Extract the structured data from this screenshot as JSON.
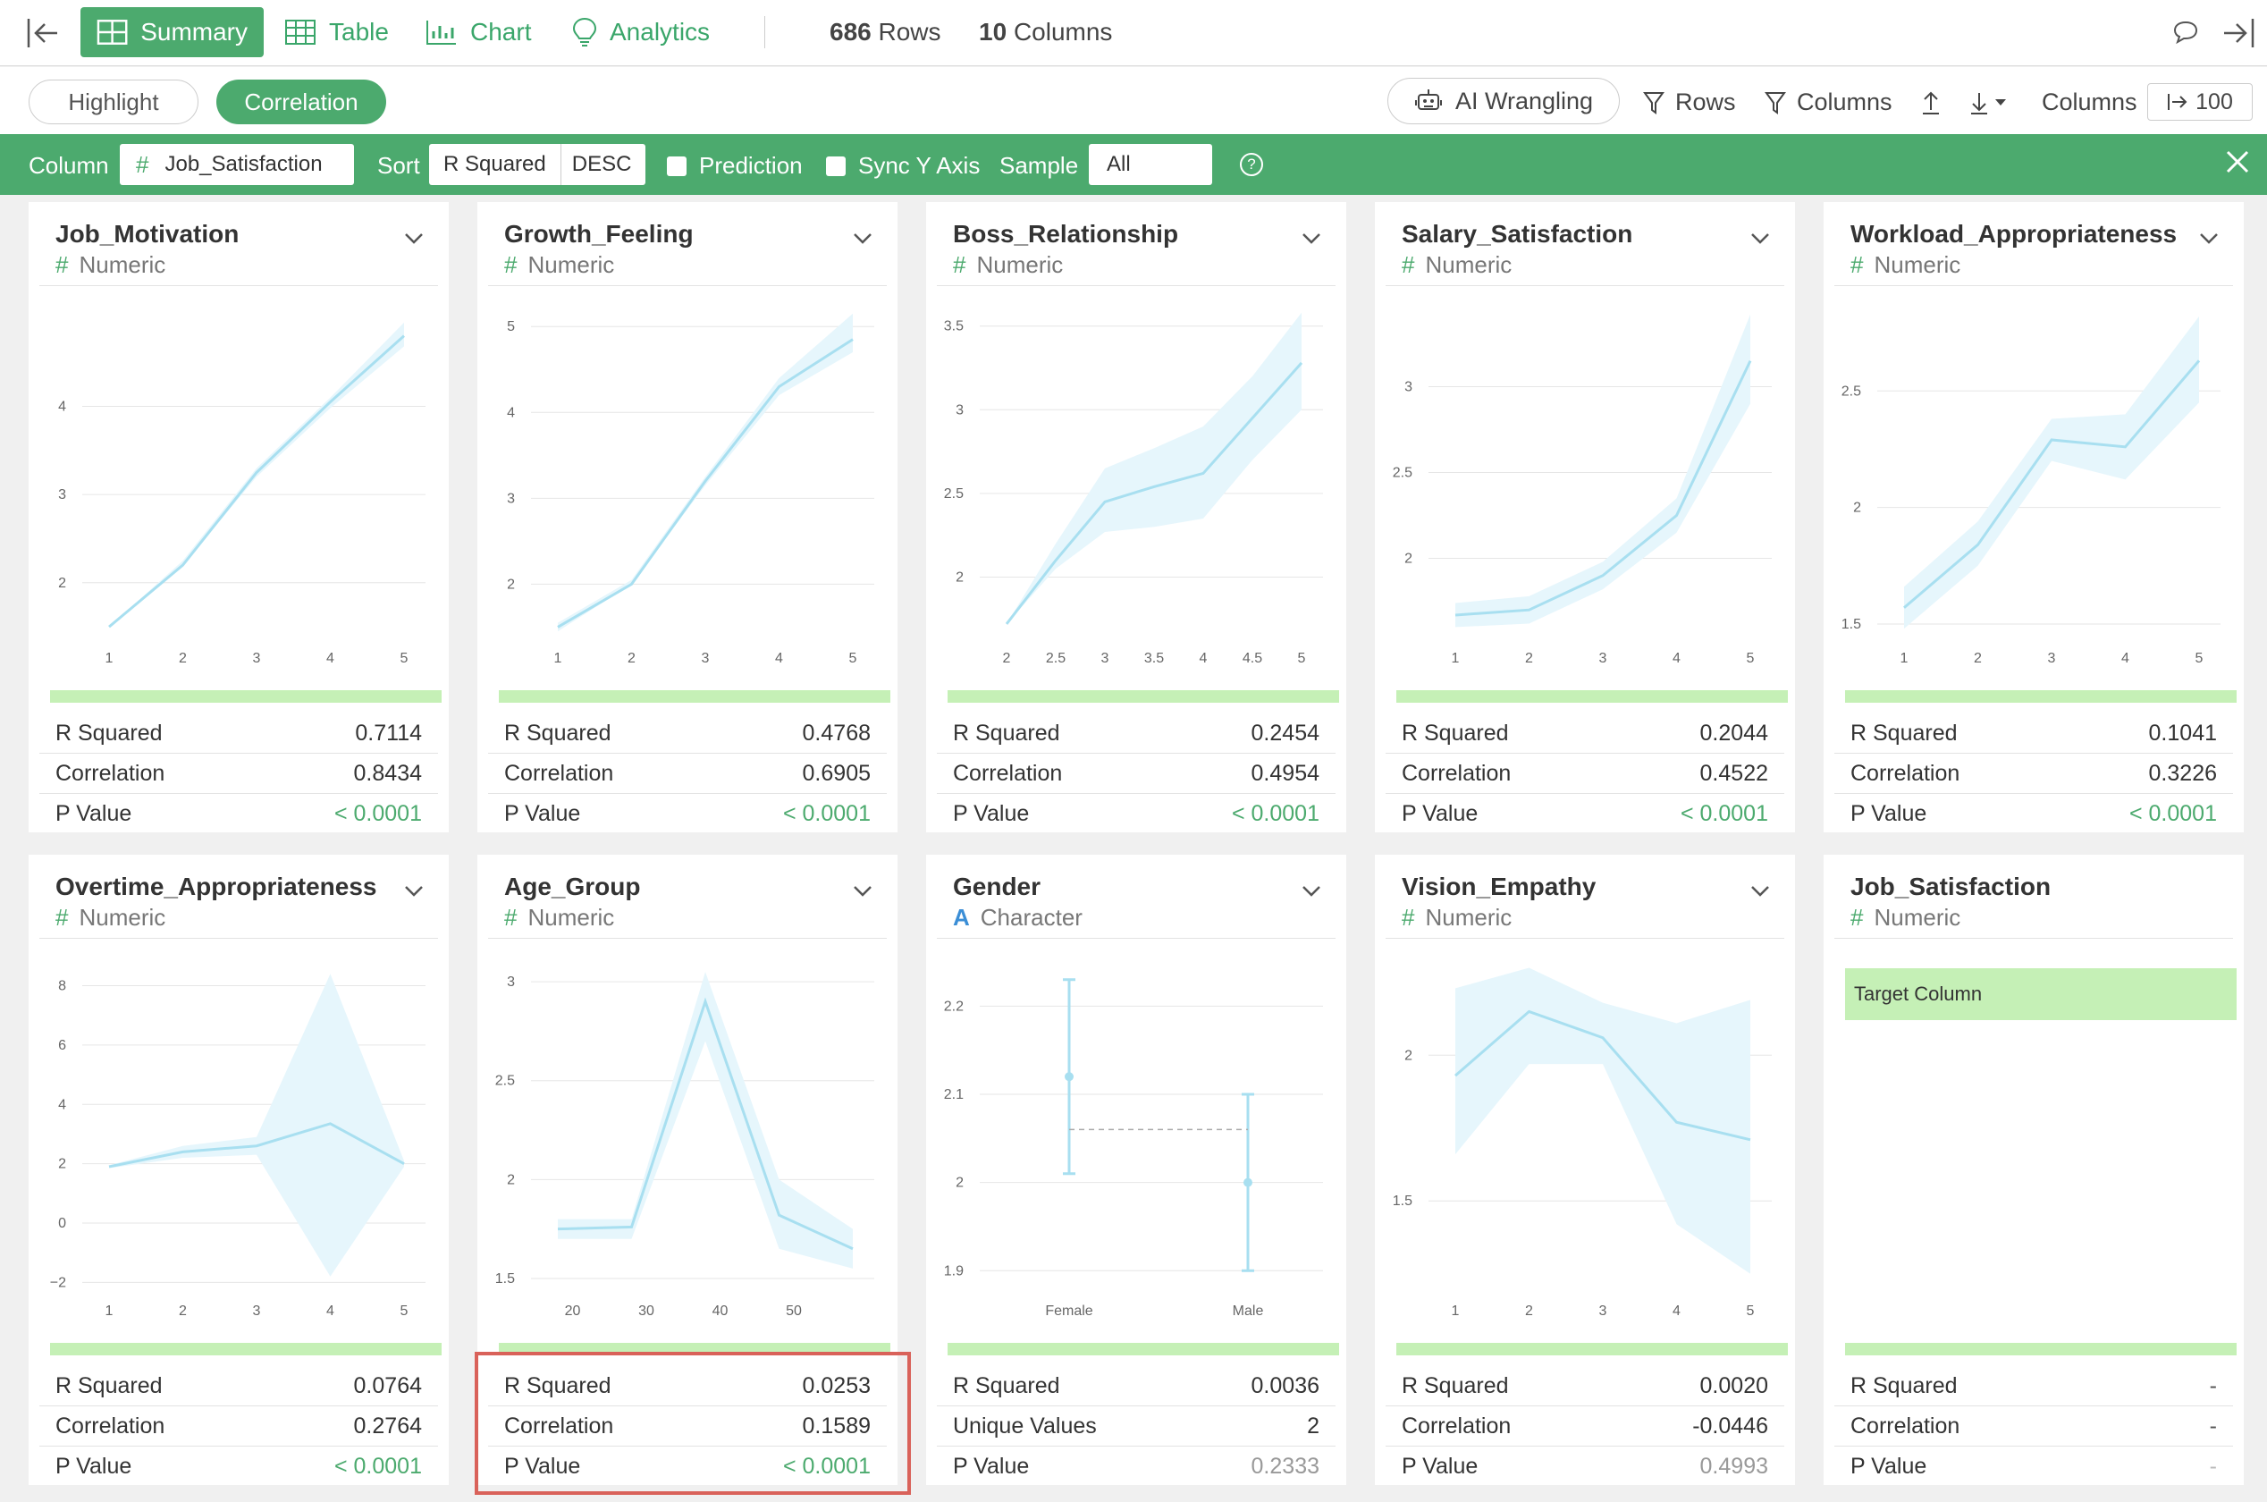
{
  "toolbar": {
    "tabs": [
      {
        "label": "Summary",
        "icon": "summary-grid-icon",
        "active": true
      },
      {
        "label": "Table",
        "icon": "table-icon",
        "active": false
      },
      {
        "label": "Chart",
        "icon": "chart-icon",
        "active": false
      },
      {
        "label": "Analytics",
        "icon": "lightbulb-icon",
        "active": false
      }
    ],
    "rows_count": "686",
    "rows_label": "Rows",
    "cols_count": "10",
    "cols_label": "Columns"
  },
  "subbar": {
    "highlight": "Highlight",
    "correlation": "Correlation",
    "ai_wrangling": "AI Wrangling",
    "rows_filter": "Rows",
    "columns_filter": "Columns",
    "columns_label": "Columns",
    "columns_value": "100"
  },
  "filter": {
    "column_label": "Column",
    "column_value": "Job_Satisfaction",
    "sort_label": "Sort",
    "sort_value": "R Squared",
    "sort_order": "DESC",
    "prediction": "Prediction",
    "sync_y": "Sync Y Axis",
    "sample_label": "Sample",
    "sample_value": "All",
    "help": "?"
  },
  "labels": {
    "r_squared": "R Squared",
    "correlation": "Correlation",
    "p_value": "P Value",
    "unique_values": "Unique Values",
    "numeric": "Numeric",
    "character": "Character",
    "target_column": "Target Column"
  },
  "cards": [
    {
      "title": "Job_Motivation",
      "type": "Numeric",
      "r2": "0.7114",
      "corr": "0.8434",
      "p": "< 0.0001"
    },
    {
      "title": "Growth_Feeling",
      "type": "Numeric",
      "r2": "0.4768",
      "corr": "0.6905",
      "p": "< 0.0001"
    },
    {
      "title": "Boss_Relationship",
      "type": "Numeric",
      "r2": "0.2454",
      "corr": "0.4954",
      "p": "< 0.0001"
    },
    {
      "title": "Salary_Satisfaction",
      "type": "Numeric",
      "r2": "0.2044",
      "corr": "0.4522",
      "p": "< 0.0001"
    },
    {
      "title": "Workload_Appropriateness",
      "type": "Numeric",
      "r2": "0.1041",
      "corr": "0.3226",
      "p": "< 0.0001"
    },
    {
      "title": "Overtime_Appropriateness",
      "type": "Numeric",
      "r2": "0.0764",
      "corr": "0.2764",
      "p": "< 0.0001"
    },
    {
      "title": "Age_Group",
      "type": "Numeric",
      "r2": "0.0253",
      "corr": "0.1589",
      "p": "< 0.0001"
    },
    {
      "title": "Gender",
      "type": "Character",
      "r2": "0.0036",
      "unique": "2",
      "p": "0.2333"
    },
    {
      "title": "Vision_Empathy",
      "type": "Numeric",
      "r2": "0.0020",
      "corr": "-0.0446",
      "p": "0.4993"
    },
    {
      "title": "Job_Satisfaction",
      "type": "Numeric",
      "r2": "-",
      "corr": "-",
      "p": "-"
    }
  ],
  "chart_data": [
    {
      "type": "line",
      "x": [
        1,
        2,
        3,
        4,
        5
      ],
      "values": [
        1.5,
        2.2,
        3.25,
        4.05,
        4.8
      ],
      "band_low": [
        1.5,
        2.2,
        3.2,
        3.98,
        4.68
      ],
      "band_high": [
        1.5,
        2.25,
        3.3,
        4.1,
        4.95
      ],
      "xticks": [
        "1",
        "2",
        "3",
        "4",
        "5"
      ],
      "yticks": [
        "2",
        "3",
        "4"
      ],
      "ylim": [
        1.4,
        5.1
      ]
    },
    {
      "type": "line",
      "x": [
        1,
        2,
        3,
        4,
        5
      ],
      "values": [
        1.5,
        2.0,
        3.2,
        4.3,
        4.85
      ],
      "band_low": [
        1.45,
        2.0,
        3.15,
        4.2,
        4.7
      ],
      "band_high": [
        1.55,
        2.05,
        3.25,
        4.4,
        5.15
      ],
      "xticks": [
        "1",
        "2",
        "3",
        "4",
        "5"
      ],
      "yticks": [
        "2",
        "3",
        "4",
        "5"
      ],
      "ylim": [
        1.4,
        5.2
      ]
    },
    {
      "type": "line",
      "x": [
        2,
        2.5,
        3,
        3.5,
        4,
        4.5,
        5
      ],
      "values": [
        1.72,
        2.1,
        2.45,
        2.54,
        2.62,
        2.95,
        3.28
      ],
      "band_low": [
        1.72,
        2.05,
        2.27,
        2.3,
        2.35,
        2.7,
        3.0
      ],
      "band_high": [
        1.72,
        2.2,
        2.65,
        2.77,
        2.9,
        3.2,
        3.58
      ],
      "xticks": [
        "2",
        "2.5",
        "3",
        "3.5",
        "4",
        "4.5",
        "5"
      ],
      "yticks": [
        "2",
        "2.5",
        "3",
        "3.5"
      ],
      "ylim": [
        1.65,
        3.6
      ]
    },
    {
      "type": "line",
      "x": [
        1,
        2,
        3,
        4,
        5
      ],
      "values": [
        1.67,
        1.7,
        1.9,
        2.25,
        3.15
      ],
      "band_low": [
        1.6,
        1.62,
        1.82,
        2.15,
        2.9
      ],
      "band_high": [
        1.74,
        1.78,
        1.98,
        2.35,
        3.42
      ],
      "xticks": [
        "1",
        "2",
        "3",
        "4",
        "5"
      ],
      "yticks": [
        "2",
        "2.5",
        "3"
      ],
      "ylim": [
        1.55,
        3.45
      ]
    },
    {
      "type": "line",
      "x": [
        1,
        2,
        3,
        4,
        5
      ],
      "values": [
        1.57,
        1.84,
        2.29,
        2.26,
        2.63
      ],
      "band_low": [
        1.48,
        1.75,
        2.2,
        2.12,
        2.45
      ],
      "band_high": [
        1.66,
        1.94,
        2.38,
        2.4,
        2.82
      ],
      "xticks": [
        "1",
        "2",
        "3",
        "4",
        "5"
      ],
      "yticks": [
        "1.5",
        "2",
        "2.5"
      ],
      "ylim": [
        1.45,
        2.85
      ]
    },
    {
      "type": "line",
      "x": [
        1,
        2,
        3,
        4,
        5
      ],
      "values": [
        1.9,
        2.4,
        2.6,
        3.35,
        2.0
      ],
      "band_low": [
        1.85,
        2.2,
        2.3,
        -1.8,
        1.9
      ],
      "band_high": [
        1.95,
        2.6,
        2.9,
        8.4,
        2.1
      ],
      "xticks": [
        "1",
        "2",
        "3",
        "4",
        "5"
      ],
      "yticks": [
        "-2",
        "0",
        "2",
        "4",
        "6",
        "8"
      ],
      "ylim": [
        -2.2,
        8.8
      ]
    },
    {
      "type": "line",
      "x": [
        18,
        28,
        38,
        48,
        58
      ],
      "values": [
        1.75,
        1.76,
        2.9,
        1.82,
        1.65
      ],
      "band_low": [
        1.7,
        1.7,
        2.7,
        1.65,
        1.55
      ],
      "band_high": [
        1.8,
        1.8,
        3.05,
        2.0,
        1.75
      ],
      "xticks": [
        "20",
        "30",
        "40",
        "50"
      ],
      "xtickvals": [
        20,
        30,
        40,
        50
      ],
      "yticks": [
        "1.5",
        "2",
        "2.5",
        "3"
      ],
      "ylim": [
        1.45,
        3.1
      ]
    },
    {
      "type": "errorbar",
      "categories": [
        "Female",
        "Male"
      ],
      "values": [
        2.12,
        2.0
      ],
      "low": [
        2.01,
        1.9
      ],
      "high": [
        2.23,
        2.1
      ],
      "mean": 2.06,
      "yticks": [
        "1.9",
        "2",
        "2.1",
        "2.2"
      ],
      "ylim": [
        1.88,
        2.25
      ]
    },
    {
      "type": "line",
      "x": [
        1,
        2,
        3,
        4,
        5
      ],
      "values": [
        1.93,
        2.15,
        2.06,
        1.77,
        1.71
      ],
      "band_low": [
        1.66,
        1.97,
        1.97,
        1.42,
        1.25
      ],
      "band_high": [
        2.23,
        2.3,
        2.18,
        2.11,
        2.19
      ],
      "xticks": [
        "1",
        "2",
        "3",
        "4",
        "5"
      ],
      "yticks": [
        "1.5",
        "2"
      ],
      "ylim": [
        1.2,
        2.32
      ]
    },
    null
  ]
}
